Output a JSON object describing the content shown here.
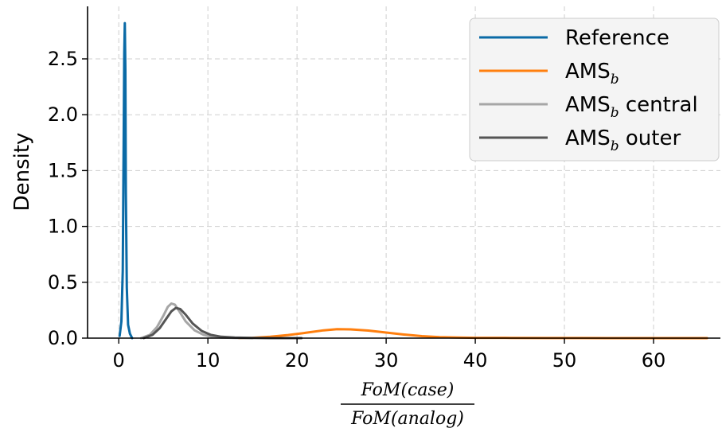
{
  "chart_data": {
    "type": "line",
    "ylabel": "Density",
    "xlabel_numerator": "FoM(case)",
    "xlabel_denominator": "FoM(analog)",
    "xlim": [
      -3.5,
      67.5
    ],
    "ylim": [
      0,
      2.97
    ],
    "x_ticks": [
      0,
      10,
      20,
      30,
      40,
      50,
      60
    ],
    "x_tick_labels": [
      "0",
      "10",
      "20",
      "30",
      "40",
      "50",
      "60"
    ],
    "y_ticks": [
      0,
      0.5,
      1.0,
      1.5,
      2.0,
      2.5
    ],
    "y_tick_labels": [
      "0.0",
      "0.5",
      "1.0",
      "1.5",
      "2.0",
      "2.5"
    ],
    "grid": true,
    "legend_position": "top-right",
    "series": [
      {
        "name": "Reference",
        "legend_main": "Reference",
        "legend_sub": "",
        "legend_suffix": "",
        "color": "#0a6aa6",
        "x": [
          0.1,
          0.3,
          0.45,
          0.55,
          0.62,
          0.68,
          0.74,
          0.8,
          0.9,
          1.05,
          1.25,
          1.5
        ],
        "y": [
          0.02,
          0.15,
          0.6,
          1.7,
          2.55,
          2.82,
          2.4,
          1.3,
          0.45,
          0.12,
          0.04,
          0.0
        ]
      },
      {
        "name": "AMSb",
        "legend_main": "AMS",
        "legend_sub": "b",
        "legend_suffix": "",
        "color": "#ff7f0e",
        "x": [
          13.5,
          15,
          17,
          19,
          21,
          23,
          24.5,
          26,
          28,
          30,
          32,
          34,
          36,
          38,
          40,
          44,
          48,
          52,
          56,
          60,
          66
        ],
        "y": [
          0.0,
          0.003,
          0.012,
          0.028,
          0.048,
          0.07,
          0.08,
          0.078,
          0.068,
          0.05,
          0.032,
          0.018,
          0.009,
          0.005,
          0.003,
          0.002,
          0.001,
          0.001,
          0.0,
          0.0,
          0.0
        ]
      },
      {
        "name": "AMSb central",
        "legend_main": "AMS",
        "legend_sub": "b",
        "legend_suffix": " central",
        "color": "#a6a6a6",
        "x": [
          2.5,
          3.5,
          4.3,
          5.0,
          5.5,
          5.9,
          6.3,
          6.8,
          7.5,
          8.5,
          9.5,
          10.5,
          11.5,
          13,
          15
        ],
        "y": [
          0.0,
          0.03,
          0.1,
          0.2,
          0.28,
          0.31,
          0.3,
          0.24,
          0.15,
          0.07,
          0.03,
          0.012,
          0.005,
          0.002,
          0.0
        ]
      },
      {
        "name": "AMSb outer",
        "legend_main": "AMS",
        "legend_sub": "b",
        "legend_suffix": " outer",
        "color": "#555555",
        "x": [
          2.8,
          3.8,
          4.6,
          5.3,
          5.9,
          6.4,
          6.9,
          7.5,
          8.3,
          9.3,
          10.3,
          11.5,
          13,
          15,
          17,
          20.5
        ],
        "y": [
          0.0,
          0.03,
          0.09,
          0.17,
          0.24,
          0.27,
          0.26,
          0.21,
          0.13,
          0.065,
          0.03,
          0.012,
          0.005,
          0.002,
          0.0,
          0.0
        ]
      }
    ]
  }
}
